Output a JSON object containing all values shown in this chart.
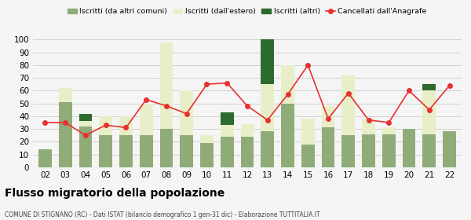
{
  "years": [
    "02",
    "03",
    "04",
    "05",
    "06",
    "07",
    "08",
    "09",
    "10",
    "11",
    "12",
    "13",
    "14",
    "15",
    "16",
    "17",
    "18",
    "19",
    "20",
    "21",
    "22"
  ],
  "iscritti_altri_comuni": [
    14,
    51,
    32,
    25,
    25,
    25,
    30,
    25,
    19,
    24,
    24,
    28,
    50,
    18,
    31,
    25,
    26,
    26,
    30,
    26,
    28
  ],
  "iscritti_estero": [
    0,
    11,
    4,
    15,
    15,
    25,
    68,
    35,
    6,
    9,
    10,
    37,
    30,
    20,
    17,
    47,
    12,
    5,
    0,
    34,
    0
  ],
  "iscritti_altri": [
    0,
    0,
    6,
    0,
    0,
    0,
    0,
    0,
    0,
    10,
    0,
    51,
    0,
    0,
    0,
    0,
    0,
    0,
    0,
    5,
    0
  ],
  "cancellati": [
    35,
    35,
    25,
    33,
    31,
    53,
    48,
    42,
    65,
    66,
    48,
    37,
    57,
    80,
    38,
    58,
    37,
    35,
    60,
    45,
    64
  ],
  "ylim": [
    0,
    100
  ],
  "yticks": [
    0,
    10,
    20,
    30,
    40,
    50,
    60,
    70,
    80,
    90,
    100
  ],
  "color_altri_comuni": "#8fac78",
  "color_estero": "#e8efc8",
  "color_altri": "#2d6a2d",
  "color_cancellati": "#e83030",
  "title": "Flusso migratorio della popolazione",
  "subtitle": "COMUNE DI STIGNANO (RC) - Dati ISTAT (bilancio demografico 1 gen-31 dic) - Elaborazione TUTTITALIA.IT",
  "legend_labels": [
    "Iscritti (da altri comuni)",
    "Iscritti (dall'estero)",
    "Iscritti (altri)",
    "Cancellati dall'Anagrafe"
  ],
  "bg_color": "#f5f5f5",
  "grid_color": "#cccccc"
}
